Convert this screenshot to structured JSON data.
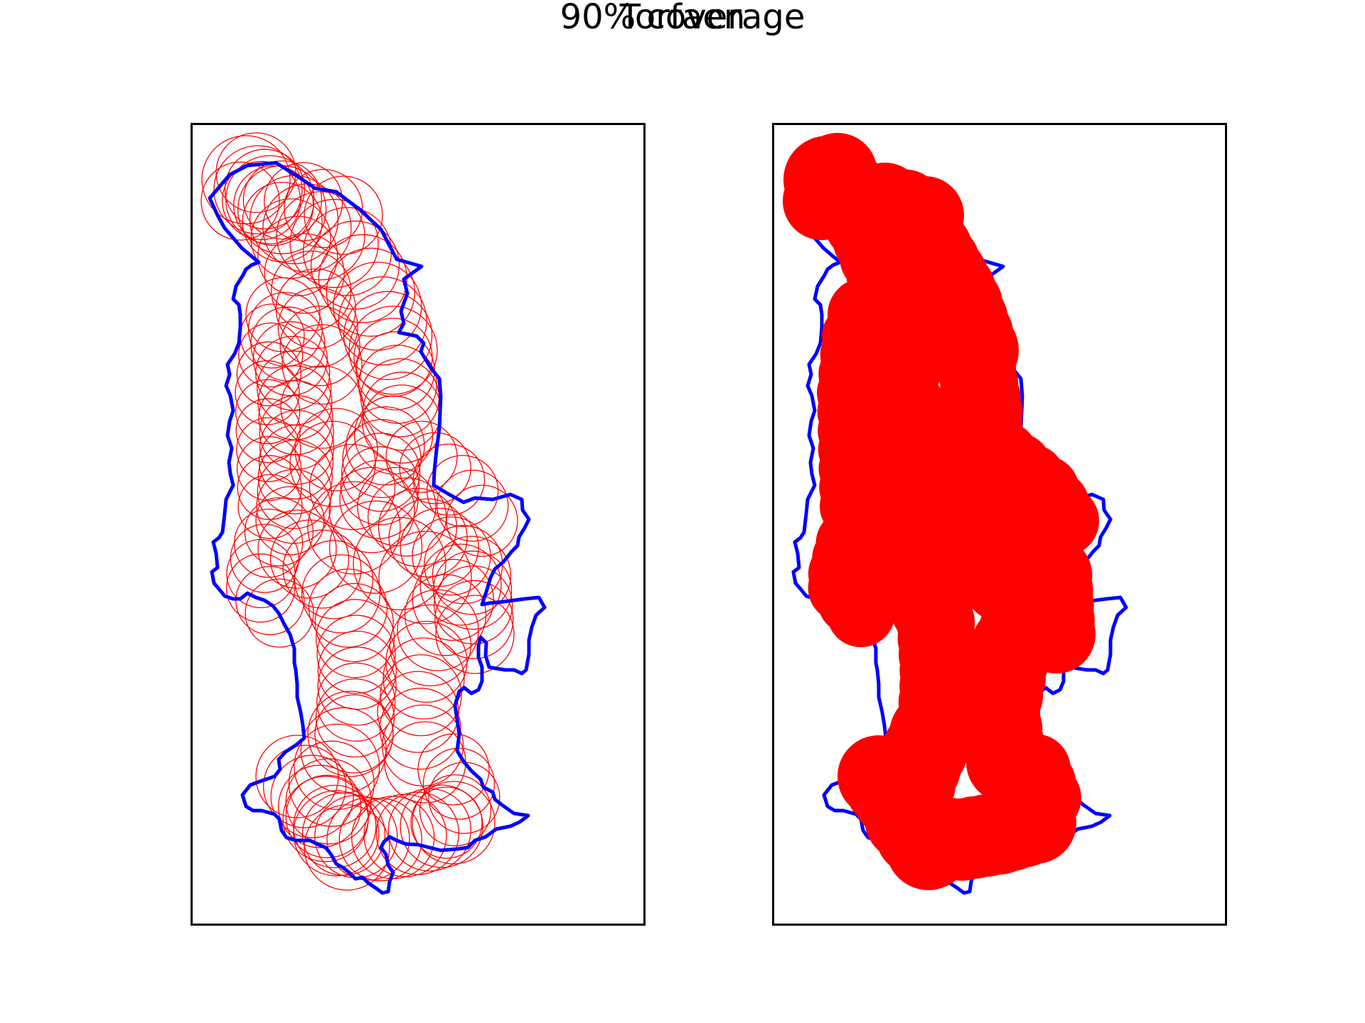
{
  "figure": {
    "title": "Torfaen",
    "subtitle": "90% coverage"
  },
  "colors": {
    "boundary": "#0000ff",
    "coverage": "#ff0000",
    "frame": "#000000"
  },
  "panels": [
    {
      "name": "circle-outlines",
      "style": "outline"
    },
    {
      "name": "filled-coverage",
      "style": "filled"
    }
  ]
}
